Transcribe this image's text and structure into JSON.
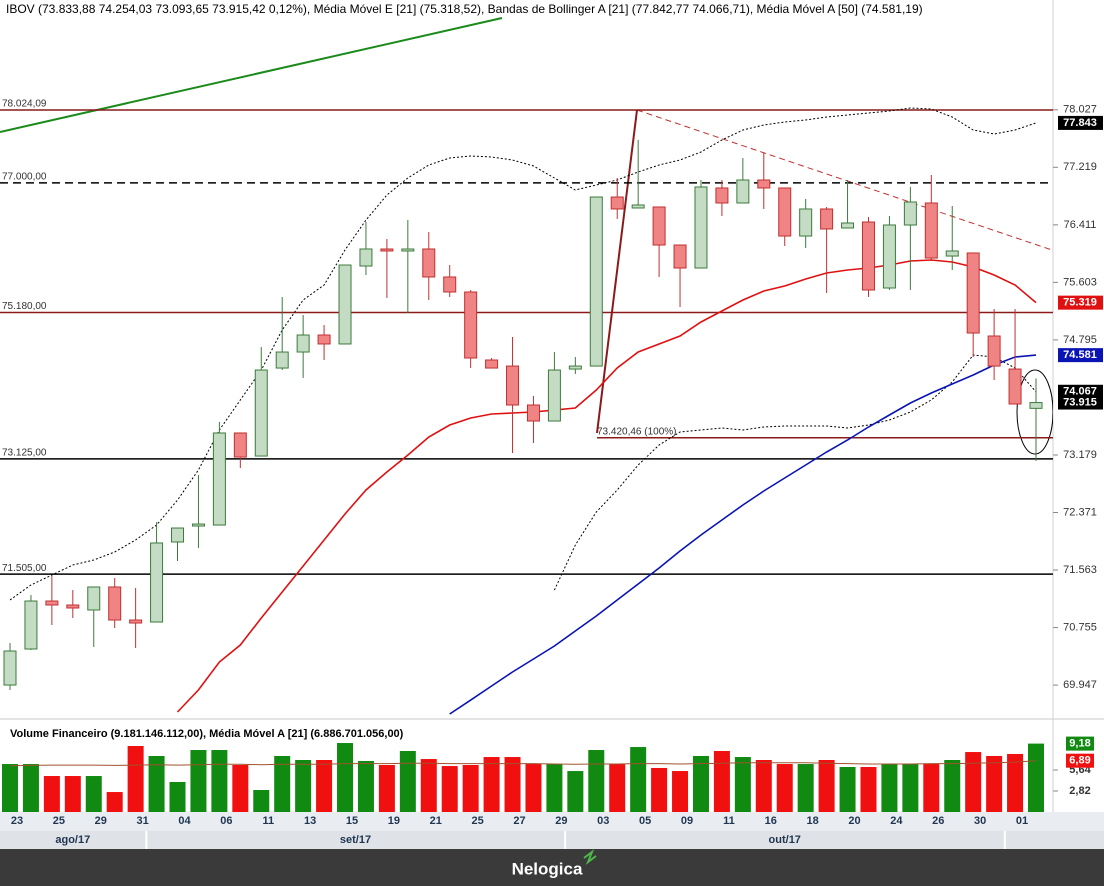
{
  "chart_data": {
    "type": "candlestick",
    "title": "IBOV (73.833,88  74.254,03  73.093,65  73.915,42  0,12%), Média Móvel E [21] (75.318,52), Bandas de Bollinger A [21] (77.842,77  74.066,71), Média Móvel A [50] (74.581,19)",
    "categories": [
      "23",
      null,
      "25",
      null,
      "29",
      null,
      "31",
      null,
      "04",
      null,
      "06",
      null,
      "11",
      null,
      "13",
      null,
      "15",
      null,
      "19",
      null,
      "21",
      null,
      "25",
      null,
      "27",
      null,
      "29",
      null,
      "03",
      null,
      "05",
      null,
      "09",
      null,
      "11",
      null,
      "16",
      null,
      "18",
      null,
      "20",
      null,
      "24",
      null,
      "26",
      null,
      "30",
      null,
      "01",
      null
    ],
    "months": [
      {
        "label": "ago/17",
        "first": 0,
        "last": 6
      },
      {
        "label": "set/17",
        "first": 7,
        "last": 26
      },
      {
        "label": "out/17",
        "first": 27,
        "last": 47
      }
    ],
    "price": {
      "ylim": [
        69.485,
        79.569
      ],
      "yticks": [
        78.027,
        77.219,
        76.411,
        75.603,
        74.795,
        73.179,
        72.371,
        71.563,
        70.755,
        69.947
      ],
      "up_color": "#c3dcc3",
      "up_edge": "#3d7a3d",
      "down_color": "#f08484",
      "down_edge": "#c03030",
      "open": [
        69.948,
        70.454,
        71.128,
        71.072,
        71.002,
        71.325,
        70.861,
        70.833,
        71.957,
        72.181,
        72.195,
        73.488,
        73.164,
        74.4,
        74.625,
        74.864,
        74.738,
        75.833,
        76.072,
        76.044,
        76.072,
        75.679,
        75.468,
        74.513,
        74.428,
        73.881,
        73.656,
        74.386,
        74.428,
        76.802,
        76.648,
        76.662,
        76.128,
        75.805,
        76.929,
        76.718,
        77.041,
        76.929,
        76.254,
        76.634,
        76.367,
        76.451,
        75.524,
        76.409,
        76.718,
        75.973,
        76.016,
        74.85,
        74.386,
        73.83388
      ],
      "high": [
        70.538,
        71.212,
        71.479,
        71.282,
        71.325,
        71.451,
        71.311,
        72.237,
        72.153,
        72.898,
        73.642,
        73.488,
        74.695,
        75.398,
        75.145,
        75.004,
        75.847,
        76.451,
        76.212,
        76.479,
        76.311,
        75.847,
        75.496,
        74.541,
        74.836,
        74.007,
        74.625,
        74.555,
        76.802,
        77.069,
        77.603,
        76.662,
        76.128,
        77.041,
        77.041,
        77.35,
        77.42,
        76.929,
        76.774,
        76.662,
        77.041,
        76.521,
        76.535,
        76.943,
        77.111,
        76.676,
        76.016,
        75.229,
        75.229,
        74.25403
      ],
      "low": [
        69.878,
        70.44,
        70.791,
        70.889,
        70.482,
        70.749,
        70.468,
        70.833,
        71.69,
        71.872,
        72.195,
        72.996,
        73.164,
        74.372,
        74.26,
        74.513,
        74.738,
        75.707,
        75.384,
        75.173,
        75.355,
        75.398,
        74.4,
        74.4,
        73.207,
        73.347,
        73.656,
        74.316,
        74.428,
        76.493,
        76.648,
        75.679,
        75.257,
        75.805,
        76.535,
        76.718,
        76.634,
        76.114,
        76.086,
        75.454,
        76.367,
        75.398,
        75.496,
        75.496,
        75.917,
        75.777,
        74.555,
        74.232,
        73.895,
        73.09365
      ],
      "close": [
        70.426,
        71.128,
        71.072,
        71.03,
        71.325,
        70.861,
        70.819,
        71.943,
        72.153,
        72.209,
        73.488,
        73.15,
        74.372,
        74.625,
        74.864,
        74.738,
        75.847,
        76.072,
        76.044,
        76.072,
        75.679,
        75.468,
        74.541,
        74.4,
        73.881,
        73.656,
        74.372,
        74.428,
        76.802,
        76.634,
        76.69,
        76.128,
        75.805,
        76.943,
        76.718,
        77.041,
        76.929,
        76.254,
        76.634,
        76.353,
        76.437,
        75.496,
        76.409,
        76.732,
        75.945,
        76.044,
        74.892,
        74.428,
        73.895,
        73.91542
      ],
      "lines": [
        {
          "color": "#000000",
          "dash": "2 2",
          "width": 1,
          "values": [
            71.142,
            71.353,
            71.493,
            71.634,
            71.704,
            71.816,
            71.985,
            72.195,
            72.546,
            72.968,
            73.53,
            73.951,
            74.372,
            74.934,
            75.355,
            75.566,
            76.058,
            76.479,
            76.83,
            77.069,
            77.252,
            77.35,
            77.378,
            77.364,
            77.322,
            77.237,
            77.069,
            76.9,
            76.971,
            77.041,
            77.153,
            77.252,
            77.322,
            77.434,
            77.603,
            77.743,
            77.813,
            77.855,
            77.884,
            77.926,
            77.954,
            77.982,
            78.01,
            78.052,
            78.038,
            77.926,
            77.743,
            77.687,
            77.743,
            77.84277
          ]
        },
        {
          "color": "#000000",
          "dash": "2 2",
          "width": 1,
          "values": [
            null,
            null,
            null,
            null,
            null,
            null,
            null,
            null,
            null,
            null,
            null,
            null,
            null,
            null,
            null,
            null,
            null,
            null,
            null,
            null,
            null,
            null,
            null,
            null,
            null,
            null,
            71.282,
            71.914,
            72.378,
            72.687,
            73.038,
            73.319,
            73.502,
            73.53,
            73.558,
            73.53,
            73.572,
            73.586,
            73.586,
            73.586,
            73.558,
            73.6,
            73.67,
            73.782,
            73.951,
            74.204,
            74.583,
            74.555,
            74.4,
            74.06671
          ]
        },
        {
          "color": "#e01010",
          "dash": "",
          "width": 1.6,
          "values": [
            null,
            null,
            null,
            null,
            null,
            null,
            null,
            null,
            69.569,
            69.878,
            70.271,
            70.51,
            70.889,
            71.254,
            71.619,
            71.985,
            72.35,
            72.687,
            72.94,
            73.178,
            73.431,
            73.6,
            73.698,
            73.754,
            73.768,
            73.782,
            73.81,
            73.839,
            74.091,
            74.4,
            74.625,
            74.737,
            74.85,
            75.046,
            75.201,
            75.355,
            75.482,
            75.552,
            75.65,
            75.735,
            75.777,
            75.805,
            75.847,
            75.903,
            75.917,
            75.889,
            75.819,
            75.707,
            75.566,
            75.31852
          ]
        },
        {
          "color": "#0a14b4",
          "dash": "",
          "width": 1.6,
          "values": [
            null,
            null,
            null,
            null,
            null,
            null,
            null,
            null,
            null,
            null,
            null,
            null,
            null,
            null,
            null,
            null,
            null,
            null,
            null,
            null,
            null,
            69.541,
            69.737,
            69.934,
            70.131,
            70.313,
            70.496,
            70.707,
            70.917,
            71.142,
            71.367,
            71.591,
            71.83,
            72.055,
            72.266,
            72.476,
            72.673,
            72.855,
            73.038,
            73.221,
            73.389,
            73.572,
            73.74,
            73.909,
            74.049,
            74.176,
            74.302,
            74.443,
            74.555,
            74.58119
          ]
        }
      ],
      "levels": [
        {
          "value": 78.02409,
          "label": "78.024,09",
          "color": "#8b1a1a",
          "dash": ""
        },
        {
          "value": 77,
          "label": "77.000,00",
          "color": "#000000",
          "dash": "8 5"
        },
        {
          "value": 75.18,
          "label": "75.180,00",
          "color": "#8b1a1a",
          "dash": ""
        },
        {
          "value": 73.125,
          "label": "73.125,00",
          "color": "#000000",
          "dash": ""
        },
        {
          "value": 71.505,
          "label": "71.505,00",
          "color": "#000000",
          "dash": ""
        }
      ],
      "annotation": {
        "value": 73.42046,
        "label": "73.420,46 (100%)",
        "color": "#8b1a1a"
      },
      "tags": [
        {
          "value": 77.84277,
          "label": "77.843",
          "color": "#000000"
        },
        {
          "value": 75.31852,
          "label": "75.319",
          "color": "#e01010"
        },
        {
          "value": 74.58119,
          "label": "74.581",
          "color": "#0a14b4"
        },
        {
          "value": 74.06671,
          "label": "74.067",
          "color": "#000000"
        },
        {
          "value": 73.91542,
          "label": "73.915",
          "color": "#000000"
        }
      ]
    },
    "volume": {
      "title": "Volume Financeiro (9.181.146.112,00), Média Móvel A [21] (6.886.701.056,00)",
      "ylim": [
        0,
        12.35
      ],
      "yticks": [
        {
          "value": 5.64,
          "label": "5,64"
        },
        {
          "value": 2.82,
          "label": "2,82"
        }
      ],
      "up_color": "#118a11",
      "down_color": "#f01010",
      "ma_color": "#a0522d",
      "values": [
        6.44,
        6.44,
        4.83,
        4.83,
        4.83,
        2.68,
        8.86,
        7.52,
        4.03,
        8.32,
        8.32,
        6.31,
        2.95,
        7.52,
        6.98,
        6.98,
        9.26,
        6.85,
        6.31,
        8.19,
        7.11,
        6.17,
        6.31,
        7.38,
        7.38,
        6.44,
        6.44,
        5.5,
        8.32,
        6.44,
        8.72,
        5.91,
        5.5,
        7.52,
        8.19,
        7.38,
        6.98,
        6.44,
        6.44,
        6.98,
        6.04,
        6.04,
        6.44,
        6.44,
        6.44,
        6.98,
        8.05,
        7.52,
        7.79,
        9.181146112
      ],
      "ma": [
        6.2,
        6.25,
        6.3,
        6.3,
        6.3,
        6.25,
        6.3,
        6.35,
        6.3,
        6.35,
        6.4,
        6.4,
        6.35,
        6.4,
        6.4,
        6.4,
        6.5,
        6.5,
        6.5,
        6.55,
        6.55,
        6.5,
        6.5,
        6.5,
        6.5,
        6.5,
        6.45,
        6.4,
        6.45,
        6.45,
        6.5,
        6.5,
        6.45,
        6.5,
        6.55,
        6.6,
        6.6,
        6.6,
        6.6,
        6.55,
        6.5,
        6.45,
        6.45,
        6.45,
        6.5,
        6.5,
        6.55,
        6.6,
        6.7,
        6.886701056
      ],
      "tags": [
        {
          "value": 9.181146112,
          "label": "9,18",
          "color": "#118a11"
        },
        {
          "value": 6.886701056,
          "label": "6,89",
          "color": "#f01010"
        }
      ]
    },
    "footer": "Nelogica"
  }
}
